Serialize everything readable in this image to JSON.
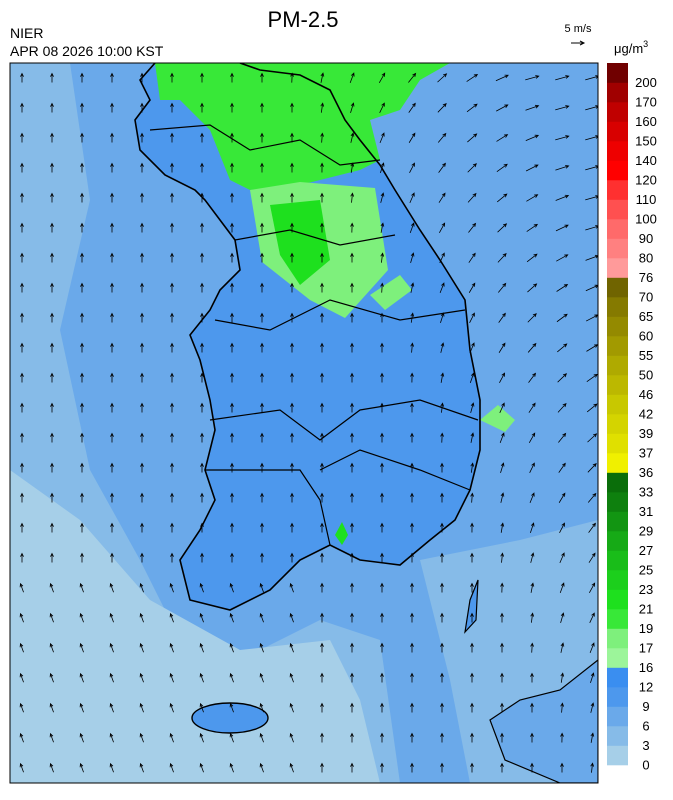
{
  "header": {
    "title": "PM-2.5",
    "agency": "NIER",
    "datetime": "APR 08 2026 10:00 KST",
    "wind_scale": "5 m/s",
    "unit": "μg/m",
    "unit_superscript": "3"
  },
  "legend": {
    "labels": [
      0,
      3,
      6,
      9,
      12,
      16,
      17,
      19,
      21,
      23,
      25,
      27,
      29,
      31,
      33,
      36,
      37,
      39,
      42,
      46,
      50,
      55,
      60,
      65,
      70,
      76,
      80,
      90,
      100,
      110,
      120,
      140,
      150,
      160,
      170,
      200
    ],
    "colors": [
      "#a6cfe8",
      "#86bbe8",
      "#6aa9ea",
      "#4d98ed",
      "#3a8ef0",
      "#9cf59a",
      "#7ef07c",
      "#38e838",
      "#1ee01e",
      "#1ccf1c",
      "#19bd19",
      "#16aa16",
      "#129512",
      "#0e800e",
      "#0a6e0a",
      "#f0f000",
      "#e0e000",
      "#d4d400",
      "#c8c800",
      "#bcb800",
      "#afaa00",
      "#a29a00",
      "#948a00",
      "#857a00",
      "#706400",
      "#ff9a9a",
      "#ff8080",
      "#ff6a6a",
      "#ff5050",
      "#ff3030",
      "#ff0000",
      "#ee0000",
      "#d80000",
      "#c00000",
      "#a00000",
      "#700000"
    ]
  }
}
